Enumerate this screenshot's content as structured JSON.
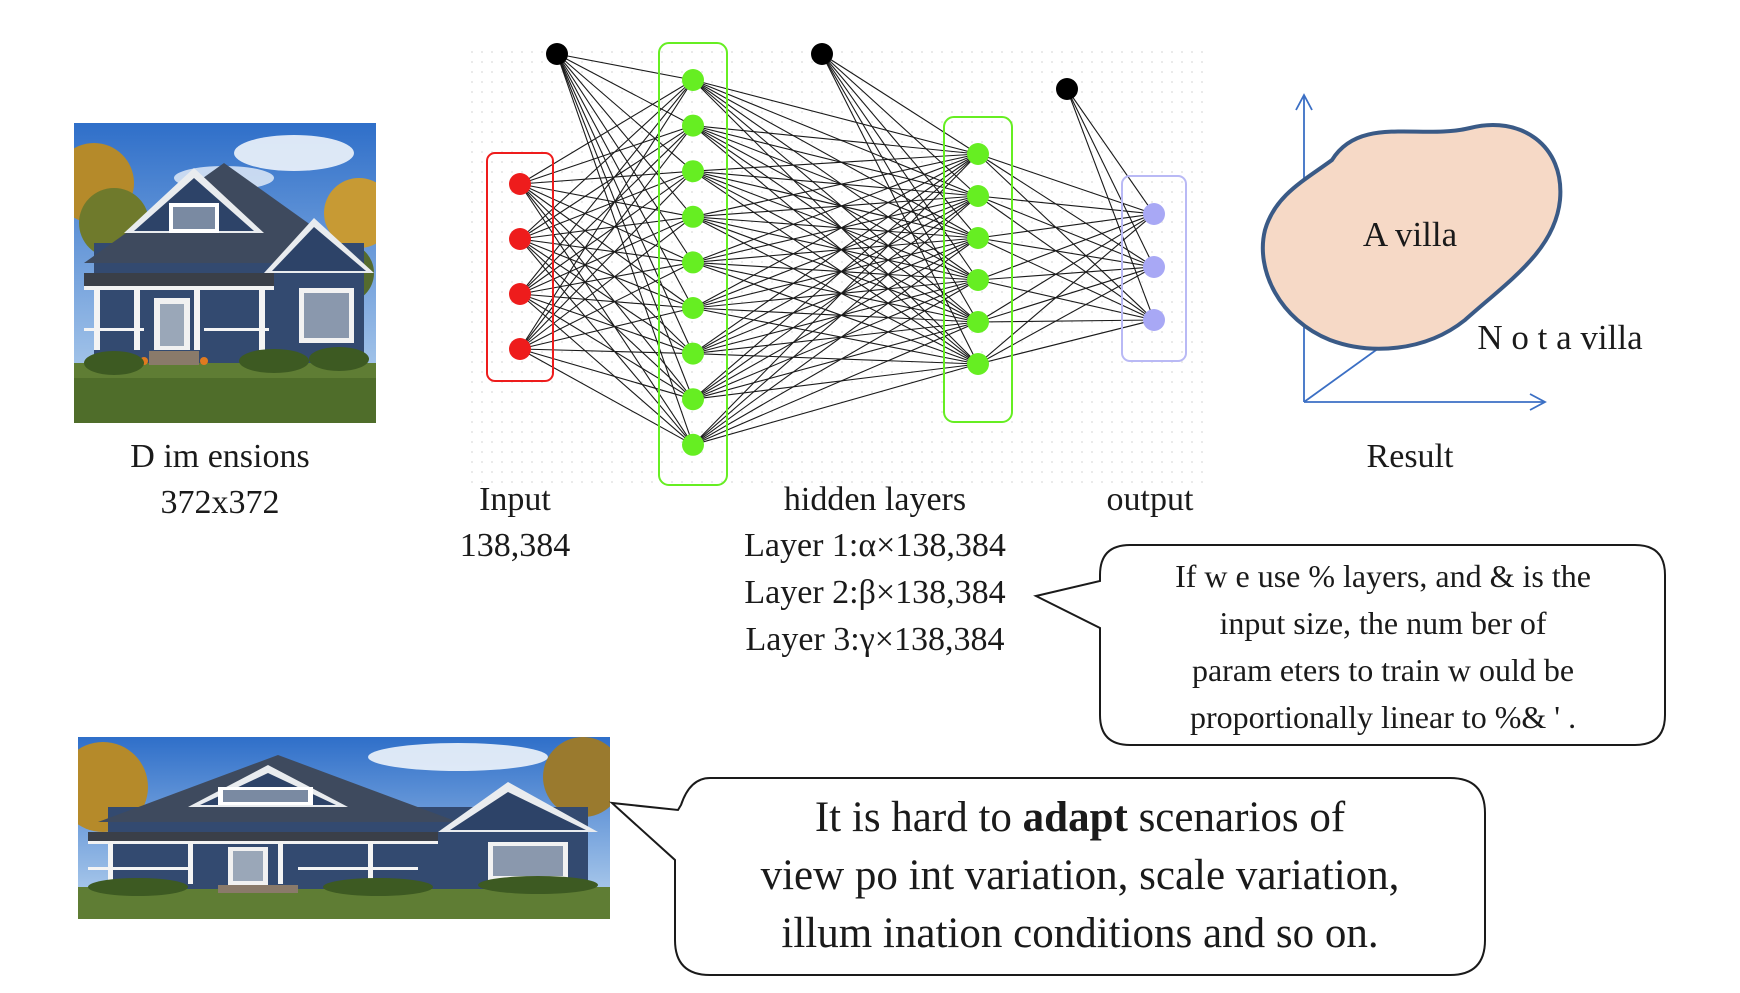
{
  "image_labels": {
    "dimensions_title": "D im ensions",
    "dimensions_value": "372x372"
  },
  "network": {
    "input_title": "Input",
    "input_value": "138,384",
    "hidden_title": "hidden layers",
    "hidden_lines": [
      "Layer 1:α×138,384",
      "Layer 2:β×138,384",
      "Layer 3:γ×138,384"
    ],
    "output_title": "output",
    "input_nodes": 4,
    "hidden1_nodes": 9,
    "hidden2_nodes": 6,
    "output_nodes": 3,
    "colors": {
      "input": "#ee1c1c",
      "hidden": "#66ee22",
      "output": "#a8a8f5",
      "bias": "#000000"
    }
  },
  "result": {
    "in_blob": "A  villa",
    "outside": "N o t a  villa",
    "caption": "Result",
    "blob_fill": "#f6d9c6",
    "blob_stroke": "#3a5a86",
    "axis_color": "#3b6fc4"
  },
  "callouts": {
    "params": [
      "If w e  use  %  layers, and  &  is the",
      "input size, the  num  ber of",
      "param eters to  train  w ould  be",
      "proportionally  linear to  %&  ' ."
    ],
    "adapt": {
      "line1_pre": "It is hard  to ",
      "line1_bold": "adapt",
      "line1_post": " scenarios of",
      "line2": "view  po int variation, scale  variation,",
      "line3": "illum  ination  conditions and  so  on."
    }
  }
}
